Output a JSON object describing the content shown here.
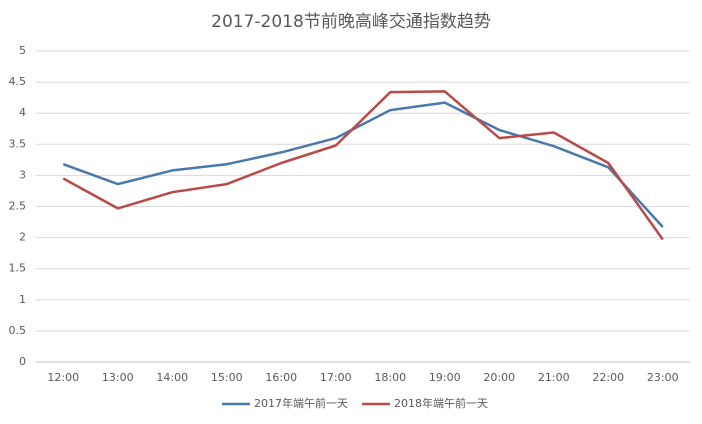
{
  "chart_data": {
    "type": "line",
    "title": "2017-2018节前晚高峰交通指数趋势",
    "categories": [
      "12:00",
      "13:00",
      "14:00",
      "15:00",
      "16:00",
      "17:00",
      "18:00",
      "19:00",
      "20:00",
      "21:00",
      "22:00",
      "23:00"
    ],
    "series": [
      {
        "name": "2017年端午前一天",
        "color": "#4a78ad",
        "values": [
          3.18,
          2.86,
          3.08,
          3.18,
          3.37,
          3.6,
          4.05,
          4.17,
          3.73,
          3.47,
          3.13,
          2.17
        ]
      },
      {
        "name": "2018年端午前一天",
        "color": "#b94a48",
        "values": [
          2.95,
          2.47,
          2.73,
          2.86,
          3.2,
          3.48,
          4.34,
          4.35,
          3.6,
          3.69,
          3.2,
          1.97
        ]
      }
    ],
    "ylim": [
      0,
      5
    ],
    "yticks": [
      0,
      0.5,
      1,
      1.5,
      2,
      2.5,
      3,
      3.5,
      4,
      4.5,
      5
    ],
    "grid": true,
    "legend": "bottom"
  }
}
